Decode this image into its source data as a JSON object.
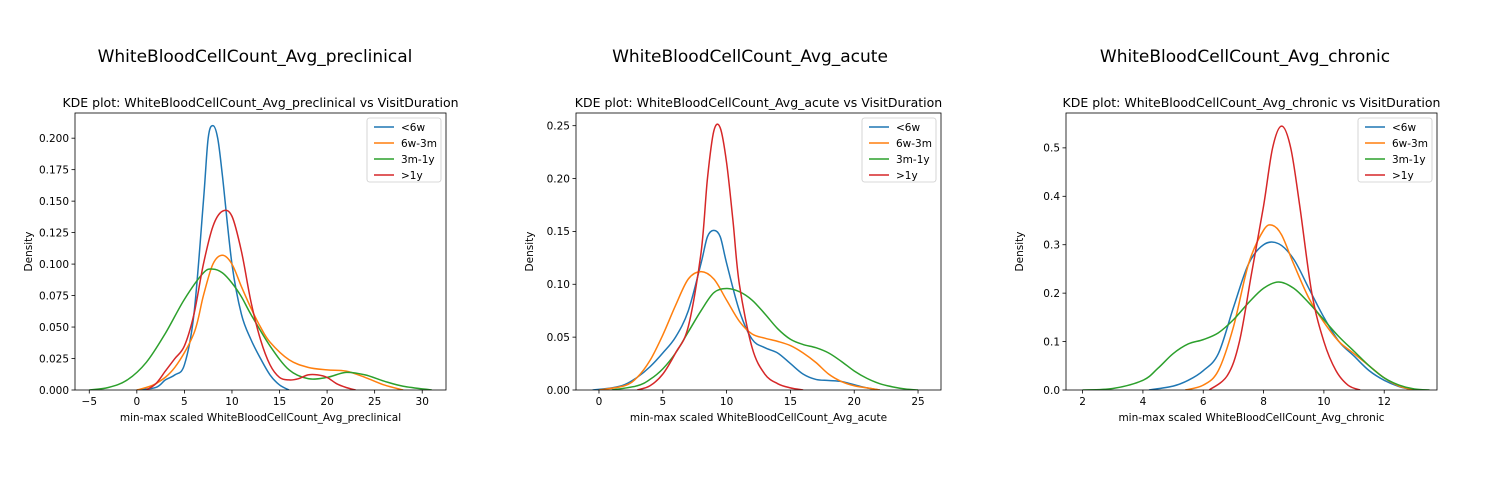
{
  "figure": {
    "background": "#ffffff"
  },
  "chart_data": [
    {
      "type": "line",
      "suptitle": "WhiteBloodCellCount_Avg_preclinical",
      "title": "KDE plot:  WhiteBloodCellCount_Avg_preclinical vs VisitDuration",
      "xlabel": "min-max scaled WhiteBloodCellCount_Avg_preclinical",
      "ylabel": "Density",
      "xlim": [
        -6.5,
        32.5
      ],
      "ylim": [
        0,
        0.22
      ],
      "xticks": [
        -5,
        0,
        5,
        10,
        15,
        20,
        25,
        30
      ],
      "xtick_labels": [
        "−5",
        "0",
        "5",
        "10",
        "15",
        "20",
        "25",
        "30"
      ],
      "yticks": [
        0,
        0.025,
        0.05,
        0.075,
        0.1,
        0.125,
        0.15,
        0.175,
        0.2
      ],
      "ytick_labels": [
        "0.000",
        "0.025",
        "0.050",
        "0.075",
        "0.100",
        "0.125",
        "0.150",
        "0.175",
        "0.200"
      ],
      "legend": "top-right",
      "series": [
        {
          "name": "<6w",
          "color": "#1f77b4",
          "x": [
            0,
            2,
            3,
            4,
            5,
            6,
            7,
            7.5,
            8,
            8.5,
            9,
            10,
            11,
            12,
            13,
            14,
            15,
            16
          ],
          "y": [
            0,
            0.002,
            0.008,
            0.012,
            0.02,
            0.06,
            0.15,
            0.2,
            0.21,
            0.2,
            0.17,
            0.1,
            0.06,
            0.04,
            0.025,
            0.012,
            0.004,
            0
          ]
        },
        {
          "name": "6w-3m",
          "color": "#ff7f0e",
          "x": [
            0,
            2,
            4,
            6,
            7,
            8,
            9,
            10,
            11,
            12,
            13,
            14,
            16,
            18,
            20,
            22,
            24,
            26,
            28
          ],
          "y": [
            0,
            0.005,
            0.018,
            0.045,
            0.075,
            0.1,
            0.107,
            0.1,
            0.082,
            0.065,
            0.05,
            0.038,
            0.024,
            0.018,
            0.016,
            0.015,
            0.01,
            0.004,
            0
          ]
        },
        {
          "name": "3m-1y",
          "color": "#2ca02c",
          "x": [
            -5,
            -3,
            -1,
            1,
            3,
            5,
            7,
            8,
            9,
            10,
            11,
            12,
            14,
            16,
            18,
            20,
            22,
            24,
            26,
            28,
            31
          ],
          "y": [
            0,
            0.002,
            0.008,
            0.022,
            0.045,
            0.072,
            0.093,
            0.096,
            0.093,
            0.085,
            0.074,
            0.06,
            0.035,
            0.016,
            0.009,
            0.01,
            0.014,
            0.012,
            0.007,
            0.003,
            0
          ]
        },
        {
          "name": ">1y",
          "color": "#d62728",
          "x": [
            1,
            2,
            3,
            4,
            5,
            6,
            7,
            8,
            9,
            10,
            11,
            12,
            13,
            14,
            15,
            16,
            17,
            18,
            19,
            20,
            21,
            22,
            23
          ],
          "y": [
            0,
            0.005,
            0.015,
            0.025,
            0.035,
            0.06,
            0.1,
            0.13,
            0.142,
            0.138,
            0.11,
            0.07,
            0.04,
            0.02,
            0.01,
            0.008,
            0.009,
            0.012,
            0.012,
            0.01,
            0.005,
            0.002,
            0
          ]
        }
      ]
    },
    {
      "type": "line",
      "suptitle": "WhiteBloodCellCount_Avg_acute",
      "title": "KDE plot:  WhiteBloodCellCount_Avg_acute vs VisitDuration",
      "xlabel": "min-max scaled WhiteBloodCellCount_Avg_acute",
      "ylabel": "Density",
      "xlim": [
        -1.8,
        26.8
      ],
      "ylim": [
        0,
        0.262
      ],
      "xticks": [
        0,
        5,
        10,
        15,
        20,
        25
      ],
      "xtick_labels": [
        "0",
        "5",
        "10",
        "15",
        "20",
        "25"
      ],
      "yticks": [
        0,
        0.05,
        0.1,
        0.15,
        0.2,
        0.25
      ],
      "ytick_labels": [
        "0.00",
        "0.05",
        "0.10",
        "0.15",
        "0.20",
        "0.25"
      ],
      "legend": "top-right",
      "series": [
        {
          "name": "<6w",
          "color": "#1f77b4",
          "x": [
            -0.5,
            1,
            2,
            3,
            4,
            5,
            6,
            7,
            8,
            8.5,
            9,
            9.5,
            10,
            11,
            12,
            13,
            14,
            15,
            16,
            17,
            18,
            19,
            20,
            21,
            22
          ],
          "y": [
            0,
            0.002,
            0.005,
            0.012,
            0.022,
            0.035,
            0.05,
            0.075,
            0.12,
            0.145,
            0.151,
            0.145,
            0.12,
            0.075,
            0.048,
            0.04,
            0.035,
            0.025,
            0.015,
            0.01,
            0.009,
            0.008,
            0.005,
            0.002,
            0
          ]
        },
        {
          "name": "6w-3m",
          "color": "#ff7f0e",
          "x": [
            0,
            2,
            3,
            4,
            5,
            6,
            7,
            8,
            9,
            10,
            11,
            12,
            13,
            14,
            15,
            16,
            17,
            18,
            19,
            20,
            21,
            22
          ],
          "y": [
            0,
            0.004,
            0.012,
            0.028,
            0.052,
            0.08,
            0.105,
            0.112,
            0.105,
            0.085,
            0.065,
            0.053,
            0.049,
            0.046,
            0.042,
            0.035,
            0.026,
            0.015,
            0.008,
            0.004,
            0.002,
            0
          ]
        },
        {
          "name": "3m-1y",
          "color": "#2ca02c",
          "x": [
            1,
            3,
            4,
            5,
            6,
            7,
            8,
            9,
            10,
            11,
            12,
            13,
            14,
            15,
            16,
            17,
            18,
            19,
            20,
            21,
            22,
            23,
            24,
            25
          ],
          "y": [
            0,
            0.004,
            0.01,
            0.02,
            0.035,
            0.055,
            0.075,
            0.092,
            0.096,
            0.093,
            0.085,
            0.072,
            0.058,
            0.048,
            0.043,
            0.04,
            0.035,
            0.027,
            0.018,
            0.011,
            0.006,
            0.003,
            0.001,
            0
          ]
        },
        {
          "name": ">1y",
          "color": "#d62728",
          "x": [
            3,
            4,
            5,
            6,
            7,
            8,
            8.5,
            9,
            9.5,
            10,
            10.5,
            11,
            12,
            13,
            14,
            15,
            16
          ],
          "y": [
            0,
            0.004,
            0.015,
            0.035,
            0.06,
            0.13,
            0.2,
            0.245,
            0.248,
            0.215,
            0.16,
            0.1,
            0.04,
            0.015,
            0.006,
            0.002,
            0
          ]
        }
      ]
    },
    {
      "type": "line",
      "suptitle": "WhiteBloodCellCount_Avg_chronic",
      "title": "KDE plot:  WhiteBloodCellCount_Avg_chronic vs VisitDuration",
      "xlabel": "min-max scaled WhiteBloodCellCount_Avg_chronic",
      "ylabel": "Density",
      "xlim": [
        1.45,
        13.75
      ],
      "ylim": [
        0,
        0.572
      ],
      "xticks": [
        2,
        4,
        6,
        8,
        10,
        12
      ],
      "xtick_labels": [
        "2",
        "4",
        "6",
        "8",
        "10",
        "12"
      ],
      "yticks": [
        0,
        0.1,
        0.2,
        0.3,
        0.4,
        0.5
      ],
      "ytick_labels": [
        "0.0",
        "0.1",
        "0.2",
        "0.3",
        "0.4",
        "0.5"
      ],
      "legend": "top-right",
      "series": [
        {
          "name": "<6w",
          "color": "#1f77b4",
          "x": [
            4.2,
            5,
            5.5,
            6,
            6.5,
            7,
            7.5,
            8,
            8.5,
            9,
            9.5,
            10,
            10.5,
            11,
            11.5,
            12,
            12.5,
            13
          ],
          "y": [
            0,
            0.008,
            0.02,
            0.04,
            0.075,
            0.17,
            0.26,
            0.3,
            0.302,
            0.27,
            0.21,
            0.15,
            0.1,
            0.07,
            0.04,
            0.02,
            0.007,
            0
          ]
        },
        {
          "name": "6w-3m",
          "color": "#ff7f0e",
          "x": [
            5.4,
            6,
            6.5,
            7,
            7.5,
            8,
            8.3,
            8.6,
            9,
            9.5,
            10,
            10.5,
            11,
            11.5,
            12,
            12.5,
            13
          ],
          "y": [
            0,
            0.01,
            0.04,
            0.13,
            0.26,
            0.33,
            0.34,
            0.32,
            0.26,
            0.19,
            0.14,
            0.1,
            0.075,
            0.05,
            0.025,
            0.008,
            0
          ]
        },
        {
          "name": "3m-1y",
          "color": "#2ca02c",
          "x": [
            2,
            3,
            4,
            4.5,
            5,
            5.5,
            6,
            6.5,
            7,
            7.5,
            8,
            8.5,
            9,
            9.5,
            10,
            10.5,
            11,
            11.5,
            12,
            12.5,
            13,
            13.5
          ],
          "y": [
            0,
            0.003,
            0.02,
            0.045,
            0.075,
            0.095,
            0.104,
            0.118,
            0.145,
            0.18,
            0.21,
            0.223,
            0.21,
            0.18,
            0.145,
            0.11,
            0.08,
            0.05,
            0.025,
            0.01,
            0.002,
            0
          ]
        },
        {
          "name": ">1y",
          "color": "#d62728",
          "x": [
            6.2,
            6.8,
            7.2,
            7.6,
            8,
            8.3,
            8.6,
            8.9,
            9.2,
            9.6,
            10,
            10.4,
            10.8,
            11.2
          ],
          "y": [
            0,
            0.03,
            0.1,
            0.24,
            0.38,
            0.5,
            0.545,
            0.5,
            0.38,
            0.2,
            0.1,
            0.04,
            0.01,
            0
          ]
        }
      ]
    }
  ]
}
